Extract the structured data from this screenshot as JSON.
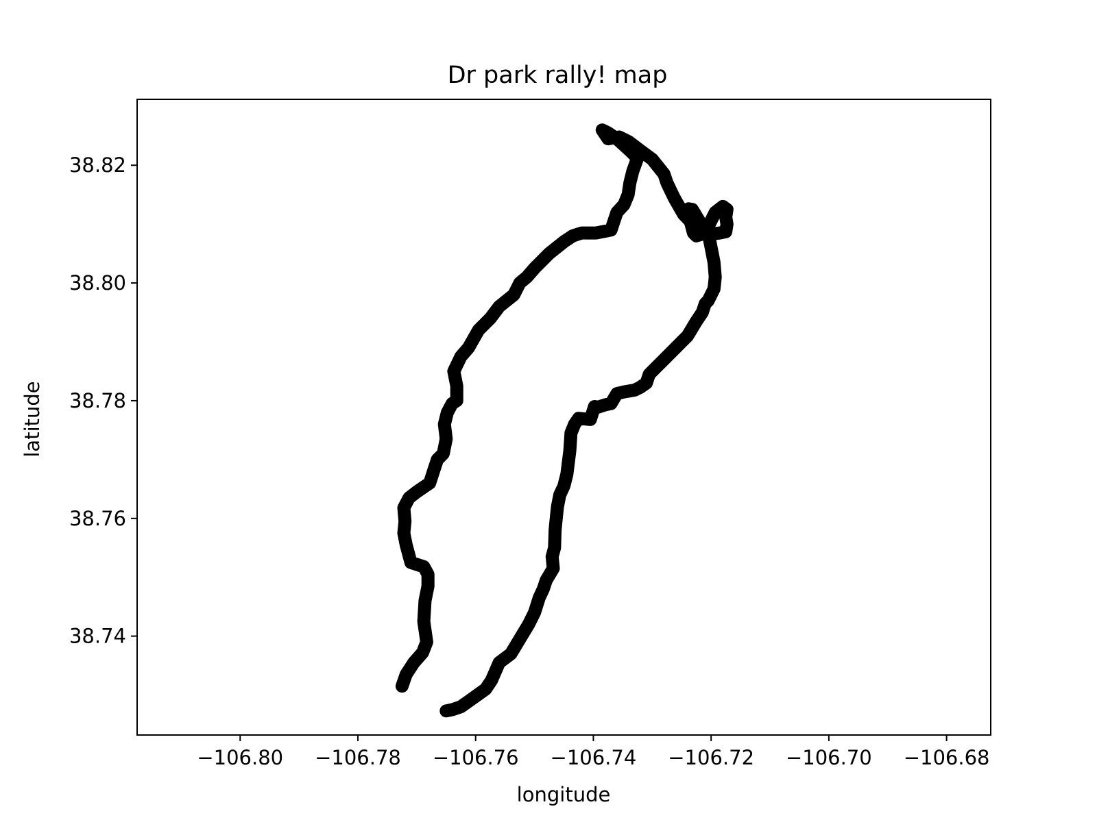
{
  "chart_data": {
    "type": "line",
    "title": "Dr  park rally! map",
    "xlabel": "longitude",
    "ylabel": "latitude",
    "xlim": [
      -106.8175,
      -106.6725
    ],
    "ylim": [
      38.7232,
      38.8312
    ],
    "xticks": [
      -106.8,
      -106.78,
      -106.76,
      -106.74,
      -106.72,
      -106.7,
      -106.68
    ],
    "xtick_labels": [
      "−106.80",
      "−106.78",
      "−106.76",
      "−106.74",
      "−106.72",
      "−106.70",
      "−106.68"
    ],
    "yticks": [
      38.74,
      38.76,
      38.78,
      38.8,
      38.82
    ],
    "ytick_labels": [
      "38.74",
      "38.76",
      "38.78",
      "38.80",
      "38.82"
    ],
    "grid": false,
    "line_color": "#000000",
    "series": [
      {
        "x": [
          -106.7725,
          -106.7718,
          -106.7705,
          -106.769,
          -106.7683,
          -106.7688,
          -106.7686,
          -106.7681,
          -106.7681,
          -106.7688,
          -106.771,
          -106.7718,
          -106.7722,
          -106.772,
          -106.7722,
          -106.7713,
          -106.77,
          -106.7678,
          -106.767,
          -106.7665,
          -106.7655,
          -106.765,
          -106.7653,
          -106.7648,
          -106.764,
          -106.7632,
          -106.7632,
          -106.7637,
          -106.7625,
          -106.7612,
          -106.7595,
          -106.7575,
          -106.756,
          -106.7535,
          -106.7525,
          -106.7513,
          -106.75,
          -106.7475,
          -106.745,
          -106.7435,
          -106.742,
          -106.7395,
          -106.737,
          -106.736,
          -106.7348,
          -106.7341,
          -106.7338,
          -106.7333,
          -106.7325,
          -106.7338,
          -106.736,
          -106.7375,
          -106.7385,
          -106.7375,
          -106.7356,
          -106.734,
          -106.732,
          -106.73,
          -106.728,
          -106.7275,
          -106.7263,
          -106.7247,
          -106.7226,
          -106.721,
          -106.7203,
          -106.7193,
          -106.718,
          -106.7173,
          -106.7175,
          -106.7173,
          -106.7175,
          -106.7185,
          -106.72,
          -106.7215,
          -106.7225,
          -106.723,
          -106.7238,
          -106.7238,
          -106.7232,
          -106.722,
          -106.7205,
          -106.72,
          -106.7195,
          -106.7193,
          -106.7195,
          -106.7205,
          -106.721,
          -106.7215,
          -106.7225,
          -106.724,
          -106.726,
          -106.728,
          -106.7295,
          -106.7305,
          -106.731,
          -106.732,
          -106.733,
          -106.7348,
          -106.736,
          -106.737,
          -106.738,
          -106.7392,
          -106.7398,
          -106.7405,
          -106.7425,
          -106.7432,
          -106.7438,
          -106.744,
          -106.7445,
          -106.745,
          -106.7457,
          -106.7461,
          -106.7463,
          -106.7465,
          -106.7466,
          -106.747,
          -106.7468,
          -106.748,
          -106.7485,
          -106.7492,
          -106.75,
          -106.751,
          -106.7525,
          -106.754,
          -106.756,
          -106.7573,
          -106.7583,
          -106.7597,
          -106.7611,
          -106.7625,
          -106.764,
          -106.765
        ],
        "y": [
          38.7315,
          38.7335,
          38.7355,
          38.7372,
          38.739,
          38.7425,
          38.746,
          38.7485,
          38.7505,
          38.7518,
          38.7525,
          38.7555,
          38.7575,
          38.7595,
          38.7618,
          38.7635,
          38.7645,
          38.766,
          38.7685,
          38.77,
          38.771,
          38.7735,
          38.776,
          38.778,
          38.7795,
          38.78,
          38.7825,
          38.785,
          38.7875,
          38.789,
          38.792,
          38.794,
          38.796,
          38.798,
          38.8,
          38.801,
          38.8025,
          38.805,
          38.807,
          38.808,
          38.8085,
          38.8085,
          38.809,
          38.812,
          38.8133,
          38.815,
          38.817,
          38.819,
          38.8212,
          38.8225,
          38.8245,
          38.8255,
          38.826,
          38.8245,
          38.8248,
          38.824,
          38.8225,
          38.821,
          38.8185,
          38.817,
          38.8145,
          38.8117,
          38.8095,
          38.8093,
          38.81,
          38.812,
          38.813,
          38.8125,
          38.8112,
          38.81,
          38.8087,
          38.8085,
          38.8083,
          38.8083,
          38.808,
          38.8085,
          38.8115,
          38.8126,
          38.8125,
          38.8105,
          38.8085,
          38.806,
          38.8035,
          38.801,
          38.799,
          38.797,
          38.7965,
          38.795,
          38.7935,
          38.791,
          38.789,
          38.787,
          38.7855,
          38.7845,
          38.783,
          38.7823,
          38.7818,
          38.7815,
          38.7812,
          38.7795,
          38.7793,
          38.7789,
          38.779,
          38.7768,
          38.777,
          38.776,
          38.7745,
          38.7715,
          38.7675,
          38.7655,
          38.764,
          38.762,
          38.76,
          38.758,
          38.755,
          38.7535,
          38.7515,
          38.7495,
          38.748,
          38.7465,
          38.744,
          38.742,
          38.7395,
          38.737,
          38.7355,
          38.7325,
          38.731,
          38.73,
          38.729,
          38.728,
          38.7275,
          38.7273
        ]
      }
    ]
  }
}
